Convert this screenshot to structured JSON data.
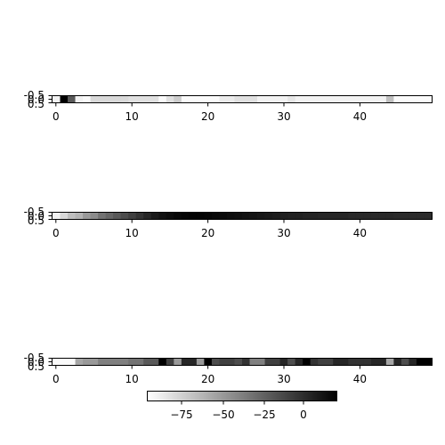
{
  "chart_data": [
    {
      "type": "heatmap",
      "title": "",
      "xlabel": "",
      "ylabel": "",
      "xticks": [
        "0",
        "10",
        "20",
        "30",
        "40"
      ],
      "yticks": [
        "-0.5",
        "0.0",
        "0.5"
      ],
      "xlim": [
        -0.5,
        49.5
      ],
      "ylim": [
        0.5,
        -0.5
      ],
      "colormap": "gray_r",
      "values": [
        5,
        100,
        65,
        5,
        2,
        15,
        15,
        15,
        15,
        15,
        12,
        12,
        12,
        12,
        2,
        12,
        20,
        2,
        2,
        2,
        2,
        2,
        8,
        8,
        12,
        12,
        12,
        5,
        5,
        5,
        5,
        10,
        5,
        5,
        5,
        5,
        5,
        5,
        5,
        5,
        5,
        5,
        5,
        5,
        25,
        2,
        2,
        2,
        2,
        2
      ]
    },
    {
      "type": "heatmap",
      "title": "",
      "xlabel": "",
      "ylabel": "",
      "xticks": [
        "0",
        "10",
        "20",
        "30",
        "40"
      ],
      "yticks": [
        "-0.5",
        "0.0",
        "0.5"
      ],
      "xlim": [
        -0.5,
        49.5
      ],
      "ylim": [
        0.5,
        -0.5
      ],
      "colormap": "gray_r",
      "values": [
        5,
        15,
        25,
        30,
        40,
        45,
        55,
        60,
        65,
        70,
        75,
        80,
        85,
        90,
        93,
        95,
        97,
        98,
        99,
        99,
        98,
        97,
        96,
        95,
        94,
        93,
        92,
        91,
        90,
        89,
        88,
        87,
        87,
        86,
        86,
        85,
        85,
        85,
        85,
        84,
        84,
        84,
        84,
        84,
        84,
        83,
        83,
        83,
        83,
        83
      ]
    },
    {
      "type": "heatmap",
      "title": "",
      "xlabel": "",
      "ylabel": "",
      "xticks": [
        "0",
        "10",
        "20",
        "30",
        "40"
      ],
      "yticks": [
        "-0.5",
        "0.0",
        "0.5"
      ],
      "xlim": [
        -0.5,
        49.5
      ],
      "ylim": [
        0.5,
        -0.5
      ],
      "colormap": "gray_r",
      "values": [
        2,
        2,
        2,
        35,
        40,
        40,
        50,
        50,
        50,
        50,
        55,
        55,
        65,
        65,
        100,
        75,
        40,
        85,
        85,
        40,
        100,
        70,
        75,
        75,
        70,
        80,
        50,
        50,
        75,
        75,
        85,
        70,
        85,
        100,
        80,
        75,
        75,
        85,
        85,
        80,
        80,
        80,
        85,
        85,
        35,
        85,
        70,
        85,
        100,
        100
      ]
    }
  ],
  "colorbar": {
    "ticks": [
      "−75",
      "−50",
      "−25",
      "0"
    ],
    "range": [
      -100,
      6
    ]
  }
}
